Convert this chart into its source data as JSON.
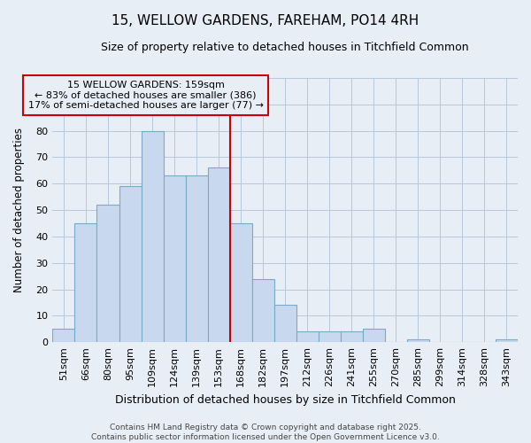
{
  "title": "15, WELLOW GARDENS, FAREHAM, PO14 4RH",
  "subtitle": "Size of property relative to detached houses in Titchfield Common",
  "xlabel": "Distribution of detached houses by size in Titchfield Common",
  "ylabel": "Number of detached properties",
  "categories": [
    "51sqm",
    "66sqm",
    "80sqm",
    "95sqm",
    "109sqm",
    "124sqm",
    "139sqm",
    "153sqm",
    "168sqm",
    "182sqm",
    "197sqm",
    "212sqm",
    "226sqm",
    "241sqm",
    "255sqm",
    "270sqm",
    "285sqm",
    "299sqm",
    "314sqm",
    "328sqm",
    "343sqm"
  ],
  "values": [
    5,
    45,
    52,
    59,
    80,
    63,
    63,
    66,
    45,
    24,
    14,
    4,
    4,
    4,
    5,
    0,
    1,
    0,
    0,
    0,
    1
  ],
  "bar_color": "#c8d8ee",
  "bar_edge_color": "#7aaac8",
  "grid_color": "#b8c8dc",
  "background_color": "#e8eef6",
  "vline_color": "#cc0000",
  "vline_x_idx": 7.5,
  "annotation_text": "15 WELLOW GARDENS: 159sqm\n← 83% of detached houses are smaller (386)\n17% of semi-detached houses are larger (77) →",
  "annotation_box_color": "#cc0000",
  "footnote_line1": "Contains HM Land Registry data © Crown copyright and database right 2025.",
  "footnote_line2": "Contains public sector information licensed under the Open Government Licence v3.0.",
  "ylim": [
    0,
    100
  ],
  "title_fontsize": 11,
  "subtitle_fontsize": 9,
  "xlabel_fontsize": 9,
  "ylabel_fontsize": 8.5,
  "tick_fontsize": 8,
  "annotation_fontsize": 8,
  "footnote_fontsize": 6.5
}
